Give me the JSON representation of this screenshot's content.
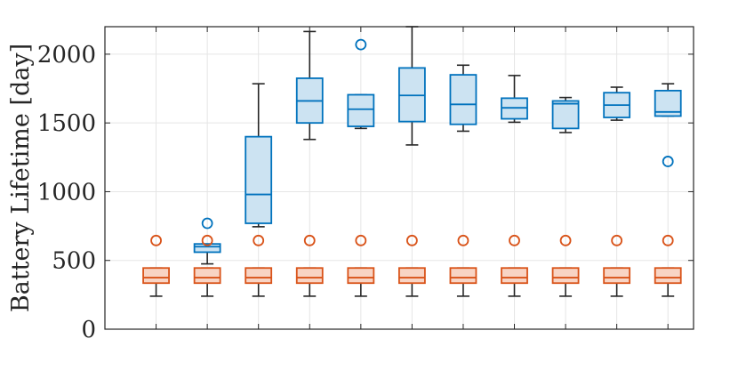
{
  "chart_data": {
    "type": "boxplot",
    "title": "",
    "xlabel": "",
    "ylabel": "Battery Lifetime [day]",
    "ylim": [
      0,
      2200
    ],
    "yticks": [
      0,
      500,
      1000,
      1500,
      2000
    ],
    "grid": true,
    "legend": "none",
    "colors": {
      "blue": "#0072BD",
      "blue_fill": "#CCE3F2",
      "orange": "#D95319",
      "orange_fill": "#F8D4C4",
      "whisker": "#262626",
      "grid": "#e5e5e5"
    },
    "positions": [
      1,
      2,
      3,
      4,
      5,
      6,
      7,
      8,
      9,
      10,
      11
    ],
    "series": [
      {
        "name": "blue",
        "color": "#0072BD",
        "fill": "#CCE3F2",
        "boxes": [
          null,
          {
            "q1": 560,
            "median": 600,
            "q3": 620,
            "whisker_low": 475,
            "whisker_high": 620,
            "outliers": [
              770
            ]
          },
          {
            "q1": 770,
            "median": 980,
            "q3": 1400,
            "whisker_low": 745,
            "whisker_high": 1785,
            "outliers": []
          },
          {
            "q1": 1500,
            "median": 1660,
            "q3": 1825,
            "whisker_low": 1380,
            "whisker_high": 2165,
            "outliers": []
          },
          {
            "q1": 1475,
            "median": 1600,
            "q3": 1705,
            "whisker_low": 1460,
            "whisker_high": 1705,
            "outliers": [
              2070
            ]
          },
          {
            "q1": 1510,
            "median": 1700,
            "q3": 1900,
            "whisker_low": 1340,
            "whisker_high": 2200,
            "outliers": []
          },
          {
            "q1": 1490,
            "median": 1635,
            "q3": 1850,
            "whisker_low": 1440,
            "whisker_high": 1920,
            "outliers": []
          },
          {
            "q1": 1530,
            "median": 1610,
            "q3": 1680,
            "whisker_low": 1505,
            "whisker_high": 1845,
            "outliers": []
          },
          {
            "q1": 1460,
            "median": 1640,
            "q3": 1660,
            "whisker_low": 1430,
            "whisker_high": 1685,
            "outliers": []
          },
          {
            "q1": 1540,
            "median": 1630,
            "q3": 1720,
            "whisker_low": 1520,
            "whisker_high": 1760,
            "outliers": []
          },
          {
            "q1": 1550,
            "median": 1580,
            "q3": 1735,
            "whisker_low": 1550,
            "whisker_high": 1785,
            "outliers": [
              1220
            ]
          }
        ]
      },
      {
        "name": "orange",
        "color": "#D95319",
        "fill": "#F8D4C4",
        "boxes": [
          {
            "q1": 335,
            "median": 375,
            "q3": 445,
            "whisker_low": 240,
            "whisker_high": 445,
            "outliers": [
              645
            ]
          },
          {
            "q1": 335,
            "median": 375,
            "q3": 445,
            "whisker_low": 240,
            "whisker_high": 445,
            "outliers": [
              645
            ]
          },
          {
            "q1": 335,
            "median": 375,
            "q3": 445,
            "whisker_low": 240,
            "whisker_high": 445,
            "outliers": [
              645
            ]
          },
          {
            "q1": 335,
            "median": 375,
            "q3": 445,
            "whisker_low": 240,
            "whisker_high": 445,
            "outliers": [
              645
            ]
          },
          {
            "q1": 335,
            "median": 375,
            "q3": 445,
            "whisker_low": 240,
            "whisker_high": 445,
            "outliers": [
              645
            ]
          },
          {
            "q1": 335,
            "median": 375,
            "q3": 445,
            "whisker_low": 240,
            "whisker_high": 445,
            "outliers": [
              645
            ]
          },
          {
            "q1": 335,
            "median": 375,
            "q3": 445,
            "whisker_low": 240,
            "whisker_high": 445,
            "outliers": [
              645
            ]
          },
          {
            "q1": 335,
            "median": 375,
            "q3": 445,
            "whisker_low": 240,
            "whisker_high": 445,
            "outliers": [
              645
            ]
          },
          {
            "q1": 335,
            "median": 375,
            "q3": 445,
            "whisker_low": 240,
            "whisker_high": 445,
            "outliers": [
              645
            ]
          },
          {
            "q1": 335,
            "median": 375,
            "q3": 445,
            "whisker_low": 240,
            "whisker_high": 445,
            "outliers": [
              645
            ]
          },
          {
            "q1": 335,
            "median": 375,
            "q3": 445,
            "whisker_low": 240,
            "whisker_high": 445,
            "outliers": [
              645
            ]
          }
        ]
      }
    ]
  }
}
